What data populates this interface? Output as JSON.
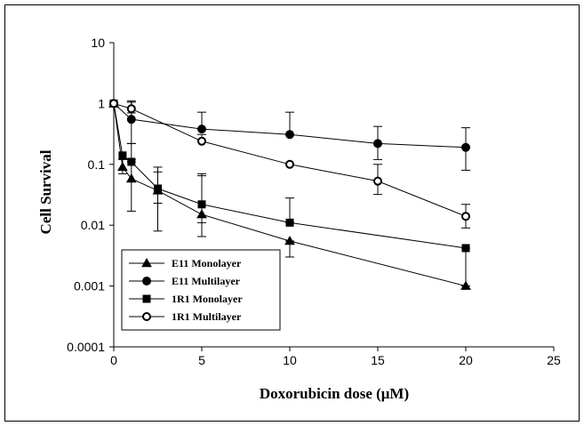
{
  "chart_data": {
    "type": "line",
    "title": "",
    "xlabel": "Doxorubicin dose (μM)",
    "ylabel": "Cell Survival",
    "xlim": [
      0,
      25
    ],
    "ylim": [
      0.0001,
      10
    ],
    "yscale": "log",
    "grid": false,
    "legend_position": "bottom-left",
    "x_ticks": [
      "0",
      "5",
      "10",
      "15",
      "20",
      "25"
    ],
    "y_ticks": [
      "10",
      "1",
      "0.1",
      "0.01",
      "0.001",
      "0.0001"
    ],
    "series": [
      {
        "name": "E11 Monolayer",
        "marker": "triangle",
        "fill": "#000000",
        "points": [
          {
            "x": 0,
            "y": 1.0,
            "lo": 1.0,
            "hi": 1.0
          },
          {
            "x": 0.5,
            "y": 0.09,
            "lo": 0.07,
            "hi": 0.12
          },
          {
            "x": 1,
            "y": 0.058,
            "lo": 0.017,
            "hi": 0.12
          },
          {
            "x": 2.5,
            "y": 0.037,
            "lo": 0.008,
            "hi": 0.09
          },
          {
            "x": 5,
            "y": 0.015,
            "lo": 0.011,
            "hi": 0.065
          },
          {
            "x": 10,
            "y": 0.0055,
            "lo": 0.003,
            "hi": 0.0055
          },
          {
            "x": 20,
            "y": 0.001,
            "lo": 0.001,
            "hi": 0.001
          }
        ]
      },
      {
        "name": "E11 Multilayer",
        "marker": "circle",
        "fill": "#000000",
        "points": [
          {
            "x": 0,
            "y": 1.0,
            "lo": 1.0,
            "hi": 1.0
          },
          {
            "x": 1,
            "y": 0.55,
            "lo": 0.22,
            "hi": 1.05
          },
          {
            "x": 5,
            "y": 0.38,
            "lo": 0.38,
            "hi": 0.72
          },
          {
            "x": 10,
            "y": 0.31,
            "lo": 0.31,
            "hi": 0.72
          },
          {
            "x": 15,
            "y": 0.22,
            "lo": 0.12,
            "hi": 0.42
          },
          {
            "x": 20,
            "y": 0.19,
            "lo": 0.08,
            "hi": 0.4
          }
        ]
      },
      {
        "name": "1R1 Monolayer",
        "marker": "square",
        "fill": "#000000",
        "points": [
          {
            "x": 0,
            "y": 1.0,
            "lo": 1.0,
            "hi": 1.0
          },
          {
            "x": 0.5,
            "y": 0.14,
            "lo": 0.14,
            "hi": 0.14
          },
          {
            "x": 1,
            "y": 0.11,
            "lo": 0.11,
            "hi": 0.22
          },
          {
            "x": 2.5,
            "y": 0.04,
            "lo": 0.023,
            "hi": 0.075
          },
          {
            "x": 5,
            "y": 0.022,
            "lo": 0.0065,
            "hi": 0.07
          },
          {
            "x": 10,
            "y": 0.011,
            "lo": 0.011,
            "hi": 0.028
          },
          {
            "x": 20,
            "y": 0.0042,
            "lo": 0.001,
            "hi": 0.0042
          }
        ]
      },
      {
        "name": "1R1 Multilayer",
        "marker": "open-circle",
        "fill": "#ffffff",
        "points": [
          {
            "x": 0,
            "y": 1.0,
            "lo": 1.0,
            "hi": 1.0
          },
          {
            "x": 1,
            "y": 0.82,
            "lo": 0.7,
            "hi": 1.1
          },
          {
            "x": 5,
            "y": 0.24,
            "lo": 0.24,
            "hi": 0.31
          },
          {
            "x": 10,
            "y": 0.1,
            "lo": 0.1,
            "hi": 0.1
          },
          {
            "x": 15,
            "y": 0.053,
            "lo": 0.032,
            "hi": 0.1
          },
          {
            "x": 20,
            "y": 0.014,
            "lo": 0.009,
            "hi": 0.022
          }
        ]
      }
    ]
  }
}
